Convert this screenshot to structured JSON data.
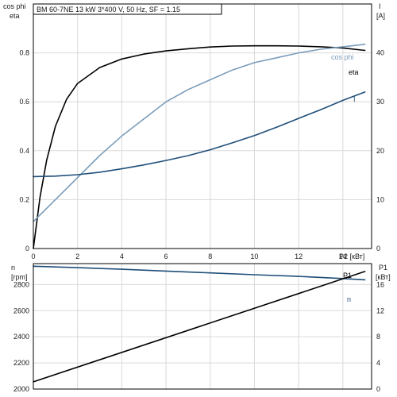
{
  "chart_data": [
    {
      "type": "line",
      "title": "BM 60-7NE   13 kW   3*400 V, 50 Hz, SF = 1.15",
      "xlabel": "P2 [кВт]",
      "x_ticks": [
        "0",
        "2",
        "4",
        "6",
        "8",
        "10",
        "12",
        "14"
      ],
      "xlim": [
        0,
        15.3
      ],
      "ylabel_left": [
        "cos phi",
        "eta"
      ],
      "ylim_left": [
        0,
        1.0
      ],
      "y_ticks_left": [
        "0",
        "0.2",
        "0.4",
        "0.6",
        "0.8"
      ],
      "ylabel_right": [
        "I",
        "[A]"
      ],
      "ylim_right": [
        0,
        50
      ],
      "y_ticks_right": [
        "0",
        "10",
        "20",
        "30",
        "40"
      ],
      "grid": true,
      "series": [
        {
          "name": "eta",
          "axis": "left",
          "color": "#000000",
          "x": [
            0,
            0.3,
            0.6,
            1.0,
            1.5,
            2.0,
            3.0,
            4.0,
            5.0,
            6.0,
            7.0,
            8.0,
            9.0,
            10.0,
            11.0,
            12.0,
            13.0,
            14.0,
            15.0
          ],
          "y": [
            0,
            0.21,
            0.36,
            0.5,
            0.61,
            0.675,
            0.74,
            0.775,
            0.795,
            0.808,
            0.817,
            0.824,
            0.828,
            0.829,
            0.829,
            0.828,
            0.825,
            0.82,
            0.81
          ]
        },
        {
          "name": "cos phi",
          "axis": "left",
          "color": "#7a9cba",
          "x": [
            0,
            1.0,
            2.0,
            3.0,
            4.0,
            5.0,
            6.0,
            7.0,
            8.0,
            9.0,
            10.0,
            11.0,
            12.0,
            13.0,
            14.0,
            15.0
          ],
          "y": [
            0.11,
            0.2,
            0.29,
            0.38,
            0.46,
            0.53,
            0.6,
            0.65,
            0.69,
            0.73,
            0.76,
            0.78,
            0.8,
            0.815,
            0.825,
            0.835
          ]
        },
        {
          "name": "I",
          "axis": "right",
          "color": "#1f4e79",
          "x": [
            0,
            1.0,
            2.0,
            3.0,
            4.0,
            5.0,
            6.0,
            7.0,
            8.0,
            9.0,
            10.0,
            11.0,
            12.0,
            13.0,
            14.0,
            15.0
          ],
          "y": [
            14.7,
            14.8,
            15.1,
            15.6,
            16.3,
            17.1,
            18.0,
            19.0,
            20.2,
            21.6,
            23.1,
            24.8,
            26.6,
            28.4,
            30.3,
            32.0
          ]
        }
      ]
    },
    {
      "type": "line",
      "ylabel_left": [
        "n",
        "[rpm]"
      ],
      "ylim_left": [
        2000,
        2960
      ],
      "y_ticks_left": [
        "2000",
        "2200",
        "2400",
        "2600",
        "2800"
      ],
      "ylabel_right": [
        "P1",
        "[кВт]"
      ],
      "ylim_right": [
        0,
        19.2
      ],
      "y_ticks_right": [
        "0",
        "4",
        "8",
        "12",
        "16"
      ],
      "xlim": [
        0,
        15.3
      ],
      "grid": true,
      "series": [
        {
          "name": "n",
          "axis": "left",
          "color": "#1f4e79",
          "x": [
            0,
            2,
            4,
            6,
            8,
            10,
            12,
            14,
            15
          ],
          "y": [
            2940,
            2929,
            2917,
            2903,
            2889,
            2875,
            2862,
            2846,
            2836
          ]
        },
        {
          "name": "P1",
          "axis": "right",
          "color": "#000000",
          "x": [
            0,
            15
          ],
          "y": [
            1.1,
            18.0
          ]
        }
      ]
    }
  ]
}
